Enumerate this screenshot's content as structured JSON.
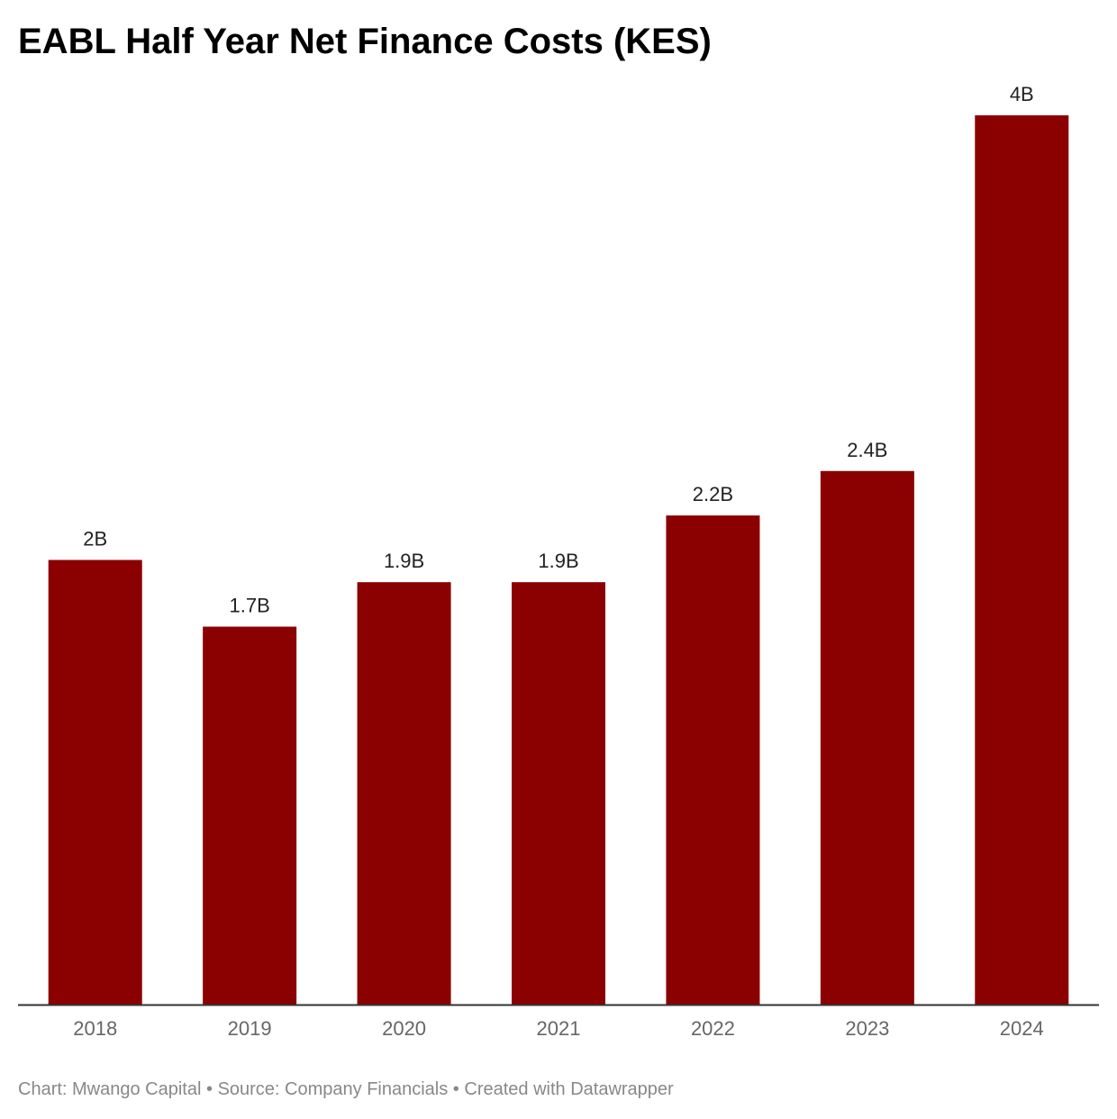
{
  "title": "EABL Half Year Net Finance Costs (KES)",
  "footer": {
    "credit": "Chart: Mwango Capital",
    "separator": " • ",
    "source": "Source: Company Financials",
    "tool": "Created with Datawrapper"
  },
  "colors": {
    "bar": "#8b0000",
    "axis": "#333333"
  },
  "chart_data": {
    "type": "bar",
    "title": "EABL Half Year Net Finance Costs (KES)",
    "categories": [
      "2018",
      "2019",
      "2020",
      "2021",
      "2022",
      "2023",
      "2024"
    ],
    "values": [
      2.0,
      1.7,
      1.9,
      1.9,
      2.2,
      2.4,
      4.0
    ],
    "value_labels": [
      "2B",
      "1.7B",
      "1.9B",
      "1.9B",
      "2.2B",
      "2.4B",
      "4B"
    ],
    "unit": "B",
    "ylim": [
      0,
      4
    ],
    "grid": false,
    "legend": "none",
    "xlabel": "",
    "ylabel": ""
  }
}
